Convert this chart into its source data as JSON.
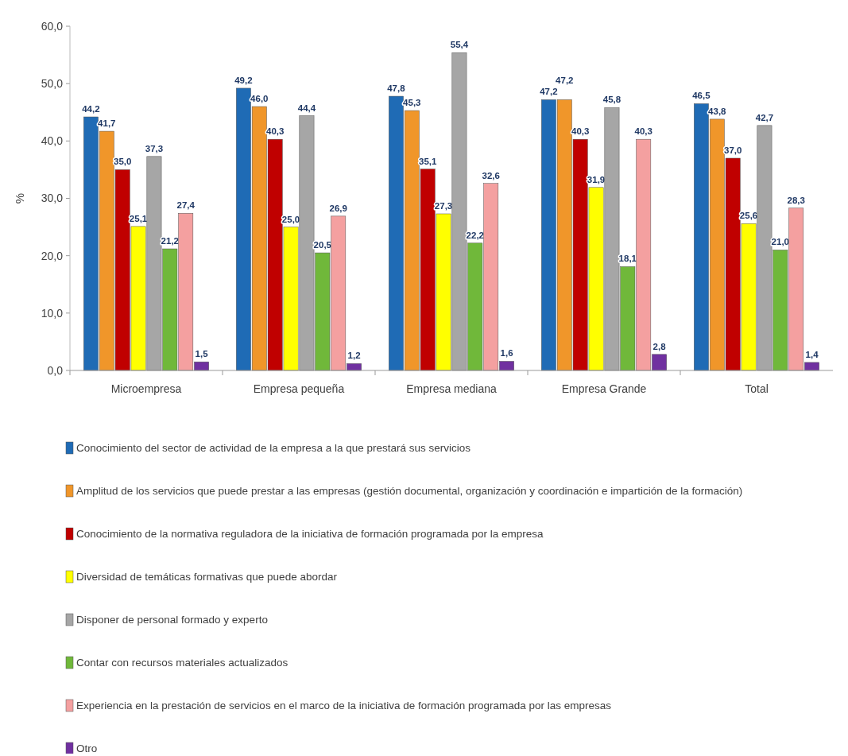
{
  "chart_data": {
    "type": "bar",
    "categories": [
      "Microempresa",
      "Empresa pequeña",
      "Empresa mediana",
      "Empresa Grande",
      "Total"
    ],
    "ylabel": "%",
    "ylim": [
      0,
      60
    ],
    "yticks": [
      {
        "value": 0,
        "label": "0,0"
      },
      {
        "value": 10,
        "label": "10,0"
      },
      {
        "value": 20,
        "label": "20,0"
      },
      {
        "value": 30,
        "label": "30,0"
      },
      {
        "value": 40,
        "label": "40,0"
      },
      {
        "value": 50,
        "label": "50,0"
      },
      {
        "value": 60,
        "label": "60,0"
      }
    ],
    "legend": "bottom",
    "series": [
      {
        "name": "Conocimiento del sector de actividad de la empresa a la que prestará sus servicios",
        "color": "#1f6bb5",
        "values": [
          44.2,
          49.2,
          47.8,
          47.2,
          46.5
        ],
        "value_labels": [
          "44,2",
          "49,2",
          "47,8",
          "47,2",
          "46,5"
        ]
      },
      {
        "name": "Amplitud de los servicios que puede prestar a las empresas (gestión documental, organización y coordinación e impartición de la formación)",
        "color": "#f0962a",
        "values": [
          41.7,
          46.0,
          45.3,
          47.2,
          43.8
        ],
        "value_labels": [
          "41,7",
          "46,0",
          "45,3",
          "47,2",
          "43,8"
        ]
      },
      {
        "name": "Conocimiento de la normativa reguladora de la iniciativa de formación programada por la empresa",
        "color": "#c00000",
        "values": [
          35.0,
          40.3,
          35.1,
          40.3,
          37.0
        ],
        "value_labels": [
          "35,0",
          "40,3",
          "35,1",
          "40,3",
          "37,0"
        ]
      },
      {
        "name": "Diversidad de temáticas formativas que puede abordar",
        "color": "#ffff00",
        "values": [
          25.1,
          25.0,
          27.3,
          31.9,
          25.6
        ],
        "value_labels": [
          "25,1",
          "25,0",
          "27,3",
          "31,9",
          "25,6"
        ]
      },
      {
        "name": "Disponer de personal formado y experto",
        "color": "#a6a6a6",
        "values": [
          37.3,
          44.4,
          55.4,
          45.8,
          42.7
        ],
        "value_labels": [
          "37,3",
          "44,4",
          "55,4",
          "45,8",
          "42,7"
        ]
      },
      {
        "name": "Contar con recursos materiales actualizados",
        "color": "#70b83a",
        "values": [
          21.2,
          20.5,
          22.2,
          18.1,
          21.0
        ],
        "value_labels": [
          "21,2",
          "20,5",
          "22,2",
          "18,1",
          "21,0"
        ]
      },
      {
        "name": "Experiencia en la prestación de servicios en el marco de la iniciativa de formación programada por las empresas",
        "color": "#f4a0a0",
        "values": [
          27.4,
          26.9,
          32.6,
          40.3,
          28.3
        ],
        "value_labels": [
          "27,4",
          "26,9",
          "32,6",
          "40,3",
          "28,3"
        ]
      },
      {
        "name": "Otro",
        "color": "#7030a0",
        "values": [
          1.5,
          1.2,
          1.6,
          2.8,
          1.4
        ],
        "value_labels": [
          "1,5",
          "1,2",
          "1,6",
          "2,8",
          "1,4"
        ]
      }
    ]
  }
}
